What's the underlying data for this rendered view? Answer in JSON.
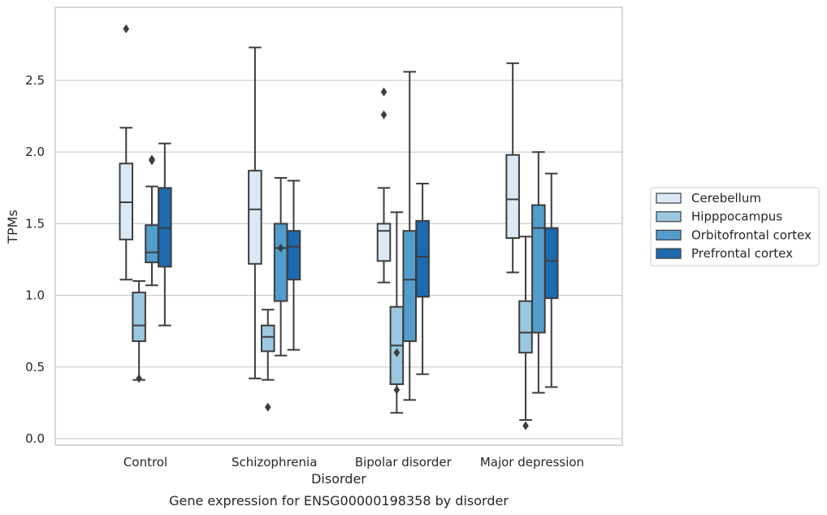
{
  "chart_data": {
    "type": "box",
    "title": "",
    "caption": "Gene expression for ENSG00000198358 by disorder",
    "xlabel": "Disorder",
    "ylabel": "TPMs",
    "ylim": [
      -0.04,
      2.99
    ],
    "yticks": [
      0.0,
      0.5,
      1.0,
      1.5,
      2.0,
      2.5
    ],
    "grid": "horizontal",
    "legend_position": "right",
    "categories": [
      "Control",
      "Schizophrenia",
      "Bipolar disorder",
      "Major depression"
    ],
    "series": [
      {
        "name": "Cerebellum",
        "color": "#dbe9f6",
        "boxes": [
          {
            "whisker_low": 1.11,
            "q1": 1.39,
            "median": 1.65,
            "q3": 1.92,
            "whisker_high": 2.17,
            "outliers": [
              2.86
            ]
          },
          {
            "whisker_low": 0.42,
            "q1": 1.22,
            "median": 1.6,
            "q3": 1.87,
            "whisker_high": 2.73,
            "outliers": []
          },
          {
            "whisker_low": 1.09,
            "q1": 1.24,
            "median": 1.45,
            "q3": 1.5,
            "whisker_high": 1.75,
            "outliers": [
              2.42,
              2.26
            ]
          },
          {
            "whisker_low": 1.16,
            "q1": 1.4,
            "median": 1.67,
            "q3": 1.98,
            "whisker_high": 2.62,
            "outliers": []
          }
        ]
      },
      {
        "name": "Hipppocampus",
        "color": "#9ac8e0",
        "boxes": [
          {
            "whisker_low": 0.41,
            "q1": 0.68,
            "median": 0.79,
            "q3": 1.02,
            "whisker_high": 1.1,
            "outliers": [
              0.42
            ]
          },
          {
            "whisker_low": 0.41,
            "q1": 0.61,
            "median": 0.71,
            "q3": 0.79,
            "whisker_high": 0.9,
            "outliers": [
              0.22
            ]
          },
          {
            "whisker_low": 0.18,
            "q1": 0.38,
            "median": 0.65,
            "q3": 0.92,
            "whisker_high": 1.58,
            "outliers": [
              0.6,
              0.34
            ]
          },
          {
            "whisker_low": 0.13,
            "q1": 0.6,
            "median": 0.74,
            "q3": 0.96,
            "whisker_high": 1.41,
            "outliers": [
              0.09
            ]
          }
        ]
      },
      {
        "name": "Orbitofrontal cortex",
        "color": "#529dcc",
        "boxes": [
          {
            "whisker_low": 1.07,
            "q1": 1.23,
            "median": 1.3,
            "q3": 1.49,
            "whisker_high": 1.76,
            "outliers": [
              1.95,
              1.94
            ]
          },
          {
            "whisker_low": 0.58,
            "q1": 0.96,
            "median": 1.33,
            "q3": 1.5,
            "whisker_high": 1.82,
            "outliers": [
              1.33
            ]
          },
          {
            "whisker_low": 0.27,
            "q1": 0.68,
            "median": 1.11,
            "q3": 1.45,
            "whisker_high": 2.56,
            "outliers": []
          },
          {
            "whisker_low": 0.32,
            "q1": 0.74,
            "median": 1.47,
            "q3": 1.63,
            "whisker_high": 2.0,
            "outliers": []
          }
        ]
      },
      {
        "name": "Prefrontal cortex",
        "color": "#1c6aaf",
        "boxes": [
          {
            "whisker_low": 0.79,
            "q1": 1.2,
            "median": 1.47,
            "q3": 1.75,
            "whisker_high": 2.06,
            "outliers": []
          },
          {
            "whisker_low": 0.62,
            "q1": 1.11,
            "median": 1.34,
            "q3": 1.45,
            "whisker_high": 1.8,
            "outliers": []
          },
          {
            "whisker_low": 0.45,
            "q1": 0.99,
            "median": 1.27,
            "q3": 1.52,
            "whisker_high": 1.78,
            "outliers": []
          },
          {
            "whisker_low": 0.36,
            "q1": 0.98,
            "median": 1.24,
            "q3": 1.47,
            "whisker_high": 1.85,
            "outliers": []
          }
        ]
      }
    ]
  }
}
